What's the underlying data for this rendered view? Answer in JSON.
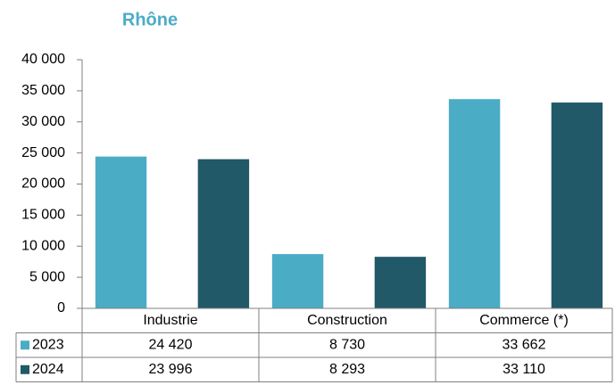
{
  "chart_data": {
    "type": "bar",
    "title": "Rhône",
    "categories": [
      "Industrie",
      "Construction",
      "Commerce (*)"
    ],
    "series": [
      {
        "name": "2023",
        "color": "#4bacc6",
        "values": [
          24420,
          8730,
          33662
        ],
        "value_labels": [
          "24 420",
          "8 730",
          "33 662"
        ]
      },
      {
        "name": "2024",
        "color": "#215968",
        "values": [
          23996,
          8293,
          33110
        ],
        "value_labels": [
          "23 996",
          "8 293",
          "33 110"
        ]
      }
    ],
    "ylim": [
      0,
      40000
    ],
    "yticks": [
      {
        "value": 0,
        "label": "0"
      },
      {
        "value": 5000,
        "label": "5 000"
      },
      {
        "value": 10000,
        "label": "10 000"
      },
      {
        "value": 15000,
        "label": "15 000"
      },
      {
        "value": 20000,
        "label": "20 000"
      },
      {
        "value": 25000,
        "label": "25 000"
      },
      {
        "value": 30000,
        "label": "30 000"
      },
      {
        "value": 35000,
        "label": "35 000"
      },
      {
        "value": 40000,
        "label": "40 000"
      }
    ],
    "grid": false
  }
}
